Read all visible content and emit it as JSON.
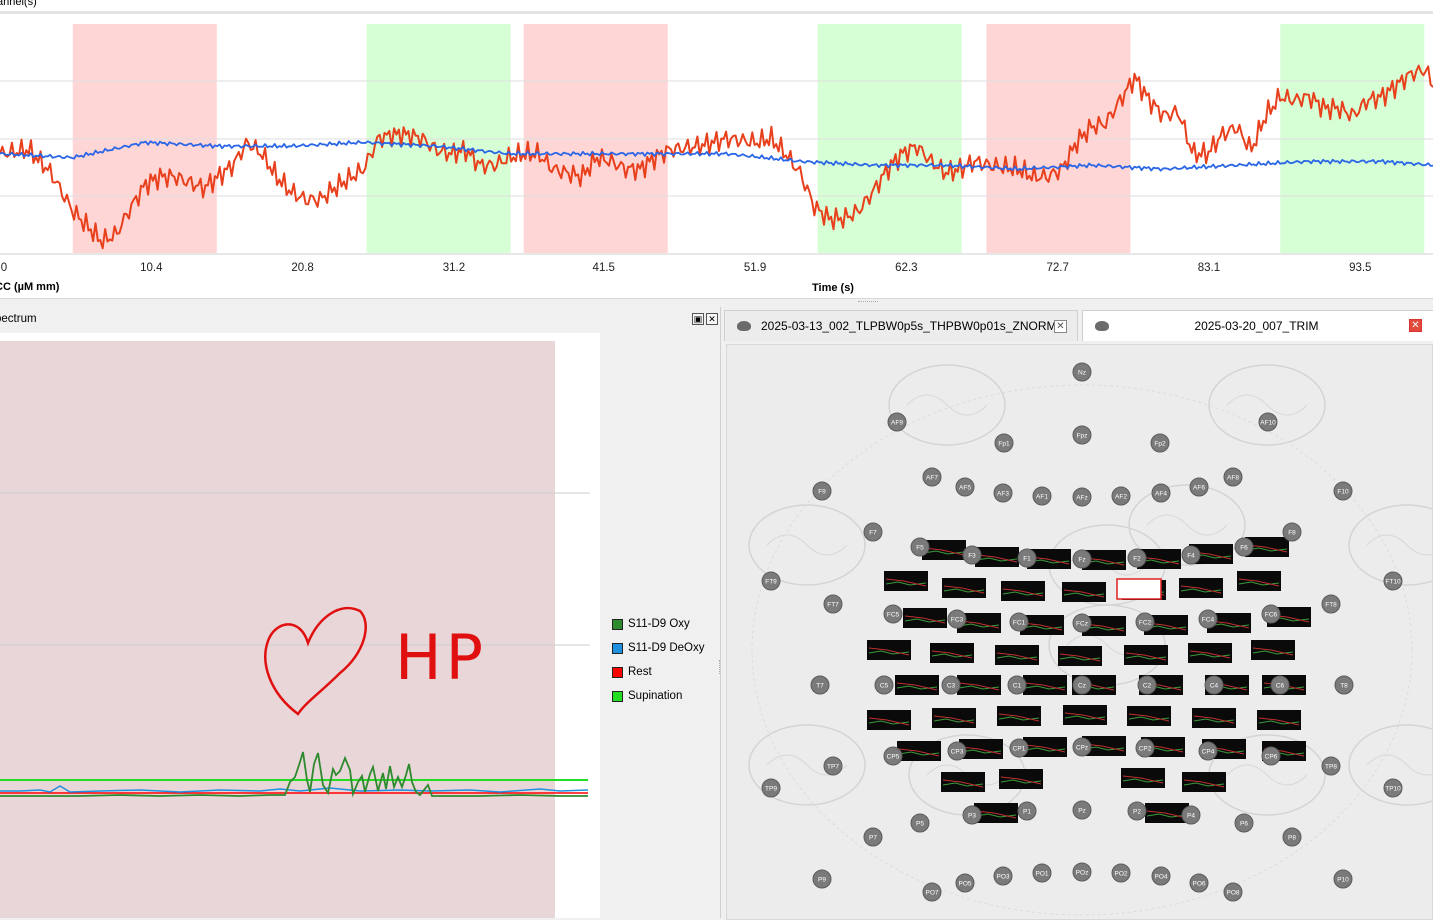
{
  "top_panel": {
    "title": "annel(s)",
    "x_label": "Time (s)",
    "y_label": "CC (µM mm)",
    "x_ticks": [
      "0",
      "10.4",
      "20.8",
      "31.2",
      "41.5",
      "51.9",
      "62.3",
      "72.7",
      "83.1",
      "93.5"
    ]
  },
  "chart_data": {
    "type": "line",
    "xlabel": "Time (s)",
    "ylabel": "CC (µM mm)",
    "x_ticks": [
      0,
      10.4,
      20.8,
      31.2,
      41.5,
      51.9,
      62.3,
      72.7,
      83.1,
      93.5
    ],
    "xlim": [
      0,
      98.5
    ],
    "blocks": [
      {
        "label": "Rest",
        "start": 5.0,
        "end": 14.9,
        "color": "#ffd6d6"
      },
      {
        "label": "Supination",
        "start": 25.2,
        "end": 35.1,
        "color": "#d6ffd6"
      },
      {
        "label": "Rest",
        "start": 36.0,
        "end": 45.9,
        "color": "#ffd6d6"
      },
      {
        "label": "Supination",
        "start": 56.2,
        "end": 66.1,
        "color": "#d6ffd6"
      },
      {
        "label": "Rest",
        "start": 67.8,
        "end": 77.7,
        "color": "#ffd6d6"
      },
      {
        "label": "Supination",
        "start": 88.0,
        "end": 97.9,
        "color": "#d6ffd6"
      }
    ],
    "series": [
      {
        "color": "#e8401c",
        "x": [
          0,
          2,
          3.5,
          5,
          6,
          7,
          8,
          9,
          10,
          11,
          12,
          14,
          16,
          17,
          18,
          19,
          20,
          21,
          22,
          23,
          25,
          26,
          27,
          28,
          29,
          30,
          31,
          32,
          33,
          34,
          35,
          36,
          37,
          38,
          39,
          40,
          41,
          42,
          43,
          44,
          45,
          46,
          48,
          50,
          52,
          53,
          54,
          55,
          56,
          57,
          58,
          59,
          60,
          61,
          62,
          63,
          64,
          65,
          66,
          67,
          68,
          70,
          71,
          72,
          73,
          74,
          75,
          76,
          77,
          78,
          79,
          80,
          81,
          82,
          83,
          84,
          85,
          86,
          87,
          88,
          89,
          90,
          91,
          92,
          93,
          94,
          95,
          96,
          97,
          98,
          98.5
        ],
        "y": [
          0.6,
          0.7,
          0.1,
          -0.9,
          -1.3,
          -1.7,
          -1.5,
          -0.8,
          -0.2,
          0.0,
          0.0,
          -0.3,
          0.3,
          0.9,
          0.6,
          0.0,
          -0.4,
          -0.6,
          -0.6,
          -0.3,
          0.2,
          1.0,
          1.1,
          1.1,
          1.0,
          0.7,
          0.6,
          0.7,
          0.3,
          0.3,
          0.5,
          0.6,
          0.6,
          0.2,
          0.1,
          0.0,
          0.5,
          0.4,
          0.2,
          0.2,
          0.5,
          0.7,
          0.8,
          1.0,
          0.9,
          1.0,
          0.6,
          0.1,
          -0.8,
          -1.1,
          -1.1,
          -0.9,
          -0.4,
          0.2,
          0.6,
          0.8,
          0.4,
          0.1,
          0.2,
          0.4,
          0.3,
          0.2,
          0.0,
          0.0,
          0.2,
          0.9,
          1.3,
          1.4,
          2.0,
          2.6,
          2.0,
          1.6,
          1.7,
          0.6,
          0.6,
          1.1,
          1.3,
          0.7,
          1.6,
          2.1,
          2.0,
          2.1,
          1.8,
          1.8,
          1.6,
          2.0,
          2.1,
          2.4,
          2.7,
          2.8,
          2.4
        ]
      },
      {
        "color": "#2a66e6",
        "x": [
          0,
          5,
          10,
          15,
          20,
          25,
          30,
          35,
          40,
          45,
          50,
          55,
          60,
          65,
          70,
          75,
          80,
          85,
          90,
          95,
          98.5
        ],
        "y": [
          0.6,
          0.5,
          0.9,
          0.8,
          0.8,
          0.9,
          0.8,
          0.6,
          0.6,
          0.6,
          0.6,
          0.4,
          0.3,
          0.3,
          0.2,
          0.3,
          0.2,
          0.3,
          0.4,
          0.4,
          0.3
        ]
      }
    ],
    "ylim": [
      -2.0,
      4.0
    ]
  },
  "spectrum_panel": {
    "title": "pectrum",
    "legend": [
      {
        "label": "S11-D9 Oxy",
        "color": "#2e8a2e"
      },
      {
        "label": "S11-D9 DeOxy",
        "color": "#1f8fe0"
      },
      {
        "label": "Rest",
        "color": "#ff0000"
      },
      {
        "label": "Supination",
        "color": "#22dd22"
      }
    ],
    "annotation": "HP",
    "float_icon": "float-icon",
    "close_icon": "close-icon"
  },
  "montage_panel": {
    "tabs": [
      {
        "label": "2025-03-13_002_TLPBW0p5s_THPBW0p01s_ZNORM",
        "icon": "brain-icon",
        "active": false
      },
      {
        "label": "2025-03-20_007_TRIM",
        "icon": "brain-icon",
        "active": true
      }
    ],
    "electrodes": [
      "Nz",
      "AF9",
      "Fp1",
      "Fpz",
      "Fp2",
      "AF10",
      "AF7",
      "AF5",
      "AF3",
      "AF1",
      "AFz",
      "AF2",
      "AF4",
      "AF6",
      "AF8",
      "F9",
      "F10",
      "F7",
      "F8",
      "F5",
      "F3",
      "F1",
      "Fz",
      "F2",
      "F4",
      "F6",
      "FT9",
      "FT10",
      "FT7",
      "FT8",
      "FC5",
      "FC3",
      "FC1",
      "FCz",
      "FC2",
      "FC4",
      "FC6",
      "T7",
      "C5",
      "C3",
      "C1",
      "Cz",
      "C2",
      "C4",
      "C6",
      "T8",
      "CP5",
      "CP3",
      "CP1",
      "CPz",
      "CP2",
      "CP4",
      "CP6",
      "TP7",
      "TP8",
      "TP9",
      "TP10",
      "P7",
      "P5",
      "P3",
      "P1",
      "Pz",
      "P2",
      "P4",
      "P6",
      "P8",
      "P9",
      "P10",
      "PO7",
      "PO5",
      "PO3",
      "PO1",
      "POz",
      "PO2",
      "PO4",
      "PO6",
      "PO8"
    ]
  }
}
